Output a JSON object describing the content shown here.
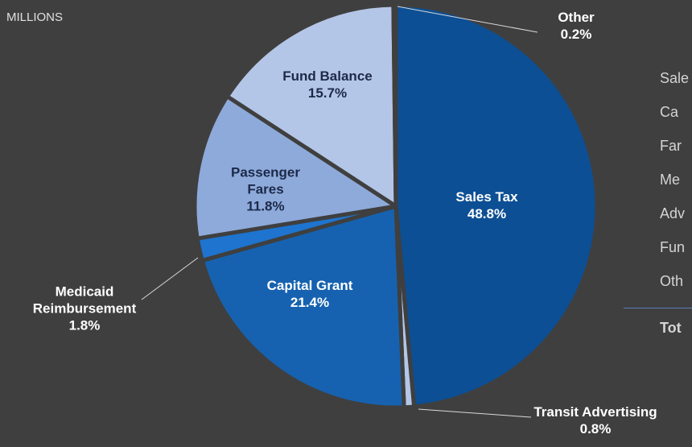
{
  "chart_data": {
    "type": "pie",
    "subtitle": "MILLIONS",
    "categories": [
      "Sales Tax",
      "Transit Advertising",
      "Capital Grant",
      "Medicaid Reimbursement",
      "Passenger Fares",
      "Fund Balance",
      "Other"
    ],
    "values": [
      48.8,
      0.8,
      21.4,
      1.8,
      11.8,
      15.7,
      0.2
    ],
    "value_labels": [
      "48.8%",
      "0.8%",
      "21.4%",
      "1.8%",
      "11.8%",
      "15.7%",
      "0.2%"
    ],
    "colors": [
      "#0d4f94",
      "#b4c7e7",
      "#1662b0",
      "#1e74cf",
      "#8eaadb",
      "#b4c6e7",
      "#d6dff0"
    ],
    "table_rows": [
      "Sale",
      "Ca",
      "Far",
      "Me",
      "Adv",
      "Fun",
      "Oth"
    ],
    "table_total": "Tot"
  }
}
